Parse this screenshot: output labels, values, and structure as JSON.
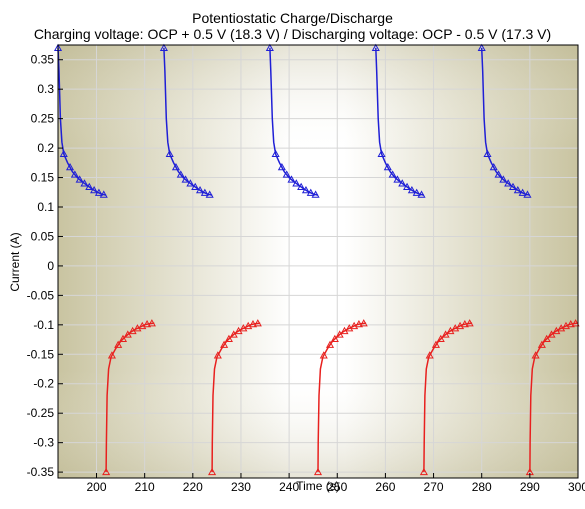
{
  "chart_data": {
    "type": "line",
    "title": "Potentiostatic Charge/Discharge",
    "subtitle": "Charging voltage: OCP + 0.5 V (18.3 V) / Discharging voltage: OCP - 0.5 V (17.3 V)",
    "xlabel": "Time (s)",
    "ylabel": "Current (A)",
    "xlim": [
      192,
      300
    ],
    "ylim": [
      -0.36,
      0.375
    ],
    "xticks": [
      200,
      210,
      220,
      230,
      240,
      250,
      260,
      270,
      280,
      290,
      300
    ],
    "yticks": [
      0.35,
      0.3,
      0.25,
      0.2,
      0.15,
      0.1,
      0.05,
      0,
      -0.05,
      -0.1,
      -0.15,
      -0.2,
      -0.25,
      -0.3,
      -0.35
    ],
    "grid": true,
    "charge_pulse_starts": [
      192,
      214,
      236,
      258,
      280
    ],
    "discharge_pulse_starts": [
      202,
      224,
      246,
      268,
      290
    ],
    "pulse_duration": 10,
    "charge_profile": [
      [
        0,
        0.37
      ],
      [
        0.2,
        0.33
      ],
      [
        0.5,
        0.25
      ],
      [
        0.8,
        0.21
      ],
      [
        1.2,
        0.19
      ],
      [
        2,
        0.175
      ],
      [
        3,
        0.16
      ],
      [
        4,
        0.15
      ],
      [
        5,
        0.143
      ],
      [
        6,
        0.137
      ],
      [
        7,
        0.131
      ],
      [
        8,
        0.126
      ],
      [
        9,
        0.122
      ],
      [
        10,
        0.12
      ]
    ],
    "discharge_profile": [
      [
        0,
        -0.35
      ],
      [
        0.05,
        -0.3
      ],
      [
        0.2,
        -0.22
      ],
      [
        0.5,
        -0.175
      ],
      [
        1,
        -0.155
      ],
      [
        2,
        -0.14
      ],
      [
        3,
        -0.128
      ],
      [
        4,
        -0.12
      ],
      [
        5,
        -0.113
      ],
      [
        6,
        -0.108
      ],
      [
        7,
        -0.104
      ],
      [
        8,
        -0.1
      ],
      [
        9,
        -0.098
      ],
      [
        10,
        -0.097
      ]
    ],
    "charge_marker_offsets": [
      0,
      1.2,
      2.5,
      3.5,
      4.5,
      5.5,
      6.5,
      7.5,
      8.5,
      9.5
    ],
    "discharge_marker_offsets": [
      0,
      1.2,
      2.5,
      3.5,
      4.5,
      5.5,
      6.5,
      7.5,
      8.5,
      9.5
    ],
    "series": [
      {
        "kind": "charge",
        "color": "#1f1fd6"
      },
      {
        "kind": "discharge",
        "color": "#e8201e"
      }
    ]
  }
}
